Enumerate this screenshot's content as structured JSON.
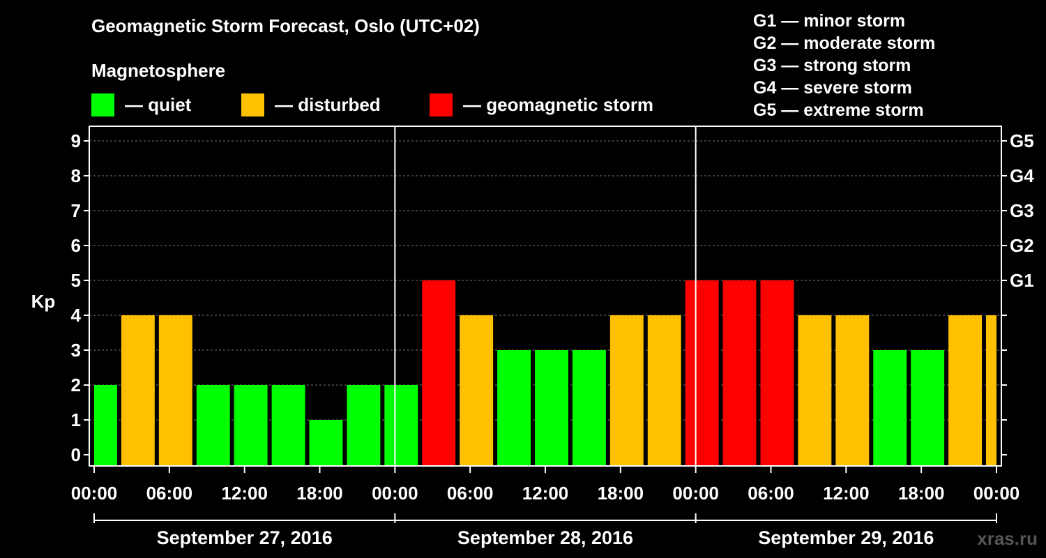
{
  "title": "Geomagnetic Storm Forecast, Oslo (UTC+02)",
  "legend": {
    "heading": "Magnetosphere",
    "items": [
      {
        "label": "— quiet",
        "color": "#00ff00"
      },
      {
        "label": "— disturbed",
        "color": "#ffc000"
      },
      {
        "label": "— geomagnetic storm",
        "color": "#ff0000"
      }
    ]
  },
  "storm_levels": [
    "G1 — minor storm",
    "G2 — moderate storm",
    "G3 — strong storm",
    "G4 — severe storm",
    "G5 — extreme storm"
  ],
  "watermark": "xras.ru",
  "chart_data": {
    "type": "bar",
    "ylabel": "Kp",
    "ylim": [
      0,
      9
    ],
    "y_ticks": [
      "0",
      "1",
      "2",
      "3",
      "4",
      "5",
      "6",
      "7",
      "8",
      "9"
    ],
    "right_ticks": [
      {
        "kp": 5,
        "label": "G1"
      },
      {
        "kp": 6,
        "label": "G2"
      },
      {
        "kp": 7,
        "label": "G3"
      },
      {
        "kp": 8,
        "label": "G4"
      },
      {
        "kp": 9,
        "label": "G5"
      }
    ],
    "x_tick_labels": [
      "00:00",
      "06:00",
      "12:00",
      "18:00",
      "00:00",
      "06:00",
      "12:00",
      "18:00",
      "00:00",
      "06:00",
      "12:00",
      "18:00",
      "00:00"
    ],
    "days": [
      "September 27, 2016",
      "September 28, 2016",
      "September 29, 2016"
    ],
    "grid": "dashed horizontal",
    "bars": [
      {
        "start_hour": 0,
        "end_hour": 2,
        "kp": 2,
        "color": "#00ff00"
      },
      {
        "start_hour": 2,
        "end_hour": 5,
        "kp": 4,
        "color": "#ffc000"
      },
      {
        "start_hour": 5,
        "end_hour": 8,
        "kp": 4,
        "color": "#ffc000"
      },
      {
        "start_hour": 8,
        "end_hour": 11,
        "kp": 2,
        "color": "#00ff00"
      },
      {
        "start_hour": 11,
        "end_hour": 14,
        "kp": 2,
        "color": "#00ff00"
      },
      {
        "start_hour": 14,
        "end_hour": 17,
        "kp": 2,
        "color": "#00ff00"
      },
      {
        "start_hour": 17,
        "end_hour": 20,
        "kp": 1,
        "color": "#00ff00"
      },
      {
        "start_hour": 20,
        "end_hour": 23,
        "kp": 2,
        "color": "#00ff00"
      },
      {
        "start_hour": 23,
        "end_hour": 26,
        "kp": 2,
        "color": "#00ff00"
      },
      {
        "start_hour": 26,
        "end_hour": 29,
        "kp": 5,
        "color": "#ff0000"
      },
      {
        "start_hour": 29,
        "end_hour": 32,
        "kp": 4,
        "color": "#ffc000"
      },
      {
        "start_hour": 32,
        "end_hour": 35,
        "kp": 3,
        "color": "#00ff00"
      },
      {
        "start_hour": 35,
        "end_hour": 38,
        "kp": 3,
        "color": "#00ff00"
      },
      {
        "start_hour": 38,
        "end_hour": 41,
        "kp": 3,
        "color": "#00ff00"
      },
      {
        "start_hour": 41,
        "end_hour": 44,
        "kp": 4,
        "color": "#ffc000"
      },
      {
        "start_hour": 44,
        "end_hour": 47,
        "kp": 4,
        "color": "#ffc000"
      },
      {
        "start_hour": 47,
        "end_hour": 50,
        "kp": 5,
        "color": "#ff0000"
      },
      {
        "start_hour": 50,
        "end_hour": 53,
        "kp": 5,
        "color": "#ff0000"
      },
      {
        "start_hour": 53,
        "end_hour": 56,
        "kp": 5,
        "color": "#ff0000"
      },
      {
        "start_hour": 56,
        "end_hour": 59,
        "kp": 4,
        "color": "#ffc000"
      },
      {
        "start_hour": 59,
        "end_hour": 62,
        "kp": 4,
        "color": "#ffc000"
      },
      {
        "start_hour": 62,
        "end_hour": 65,
        "kp": 3,
        "color": "#00ff00"
      },
      {
        "start_hour": 65,
        "end_hour": 68,
        "kp": 3,
        "color": "#00ff00"
      },
      {
        "start_hour": 68,
        "end_hour": 71,
        "kp": 4,
        "color": "#ffc000"
      },
      {
        "start_hour": 71,
        "end_hour": 72,
        "kp": 4,
        "color": "#ffc000"
      }
    ]
  }
}
